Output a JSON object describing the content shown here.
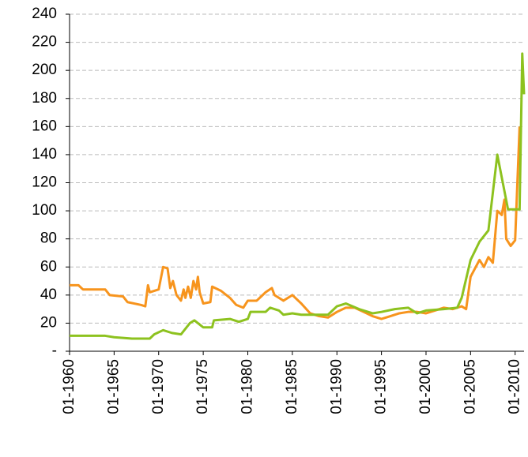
{
  "chart_data": {
    "type": "line",
    "xlim": [
      1960,
      2011
    ],
    "xticks": [
      {
        "value": 1960,
        "label": "01-1960"
      },
      {
        "value": 1965,
        "label": "01-1965"
      },
      {
        "value": 1970,
        "label": "01-1970"
      },
      {
        "value": 1975,
        "label": "01-1975"
      },
      {
        "value": 1980,
        "label": "01-1980"
      },
      {
        "value": 1985,
        "label": "01-1985"
      },
      {
        "value": 1990,
        "label": "01-1990"
      },
      {
        "value": 1995,
        "label": "01-1995"
      },
      {
        "value": 2000,
        "label": "01-2000"
      },
      {
        "value": 2005,
        "label": "01-2005"
      },
      {
        "value": 2010,
        "label": "01-2010"
      }
    ],
    "ylim": [
      0,
      240
    ],
    "yticks": [
      {
        "value": 0,
        "label": "-"
      },
      20,
      40,
      60,
      80,
      100,
      120,
      140,
      160,
      180,
      200,
      220,
      240
    ],
    "grid": true,
    "series": [
      {
        "color": "#f7941d",
        "x": [
          1960,
          1961,
          1961.5,
          1964,
          1964.5,
          1966,
          1966.5,
          1968,
          1968.5,
          1968.8,
          1969,
          1970,
          1970.5,
          1971,
          1971.3,
          1971.6,
          1972,
          1972.5,
          1972.8,
          1973,
          1973.3,
          1973.6,
          1973.9,
          1974.2,
          1974.4,
          1974.6,
          1975,
          1975.8,
          1976,
          1977,
          1978,
          1978.7,
          1979.5,
          1980,
          1981,
          1981.5,
          1982,
          1982.7,
          1983,
          1984,
          1985,
          1986,
          1987,
          1988,
          1989,
          1990,
          1991,
          1992,
          1993,
          1994,
          1995,
          1996,
          1997,
          1998,
          1999,
          2000,
          2001,
          2002,
          2003,
          2004,
          2004.5,
          2005,
          2006,
          2006.5,
          2007,
          2007.5,
          2008,
          2008.5,
          2008.8,
          2009,
          2009.5,
          2010,
          2010.5
        ],
        "values": [
          47,
          47,
          44,
          44,
          40,
          39,
          35,
          33,
          32,
          47,
          42,
          44,
          60,
          59,
          45,
          50,
          40,
          36,
          44,
          38,
          46,
          38,
          50,
          44,
          53,
          42,
          34,
          35,
          46,
          43,
          38,
          33,
          31,
          36,
          36,
          39,
          42,
          45,
          40,
          36,
          40,
          34,
          27,
          25,
          24,
          28,
          31,
          31,
          28,
          25,
          23,
          25,
          27,
          28,
          28,
          27,
          29,
          31,
          30,
          32,
          30,
          53,
          65,
          60,
          67,
          63,
          100,
          97,
          108,
          80,
          75,
          79,
          160
        ]
      },
      {
        "color": "#8dc21f",
        "x": [
          1960,
          1964,
          1965,
          1967,
          1969,
          1969.5,
          1970.5,
          1971.5,
          1972.5,
          1973,
          1973.5,
          1974,
          1975,
          1976,
          1976.2,
          1978,
          1979,
          1980,
          1980.3,
          1982,
          1982.5,
          1983.5,
          1984,
          1985,
          1986,
          1989,
          1990,
          1991,
          1992.5,
          1994,
          1995,
          1996.5,
          1998,
          1999,
          2000,
          2002,
          2003.5,
          2004,
          2005,
          2006,
          2007,
          2008,
          2009.2,
          2010.5,
          2010.8,
          2011
        ],
        "values": [
          11,
          11,
          10,
          9,
          9,
          12,
          15,
          13,
          12,
          16,
          20,
          22,
          17,
          17,
          22,
          23,
          21,
          23,
          28,
          28,
          31,
          29,
          26,
          27,
          26,
          26,
          32,
          34,
          30,
          27,
          28,
          30,
          31,
          27,
          29,
          30,
          31,
          38,
          65,
          78,
          86,
          140,
          101,
          101,
          212,
          183
        ]
      }
    ]
  }
}
